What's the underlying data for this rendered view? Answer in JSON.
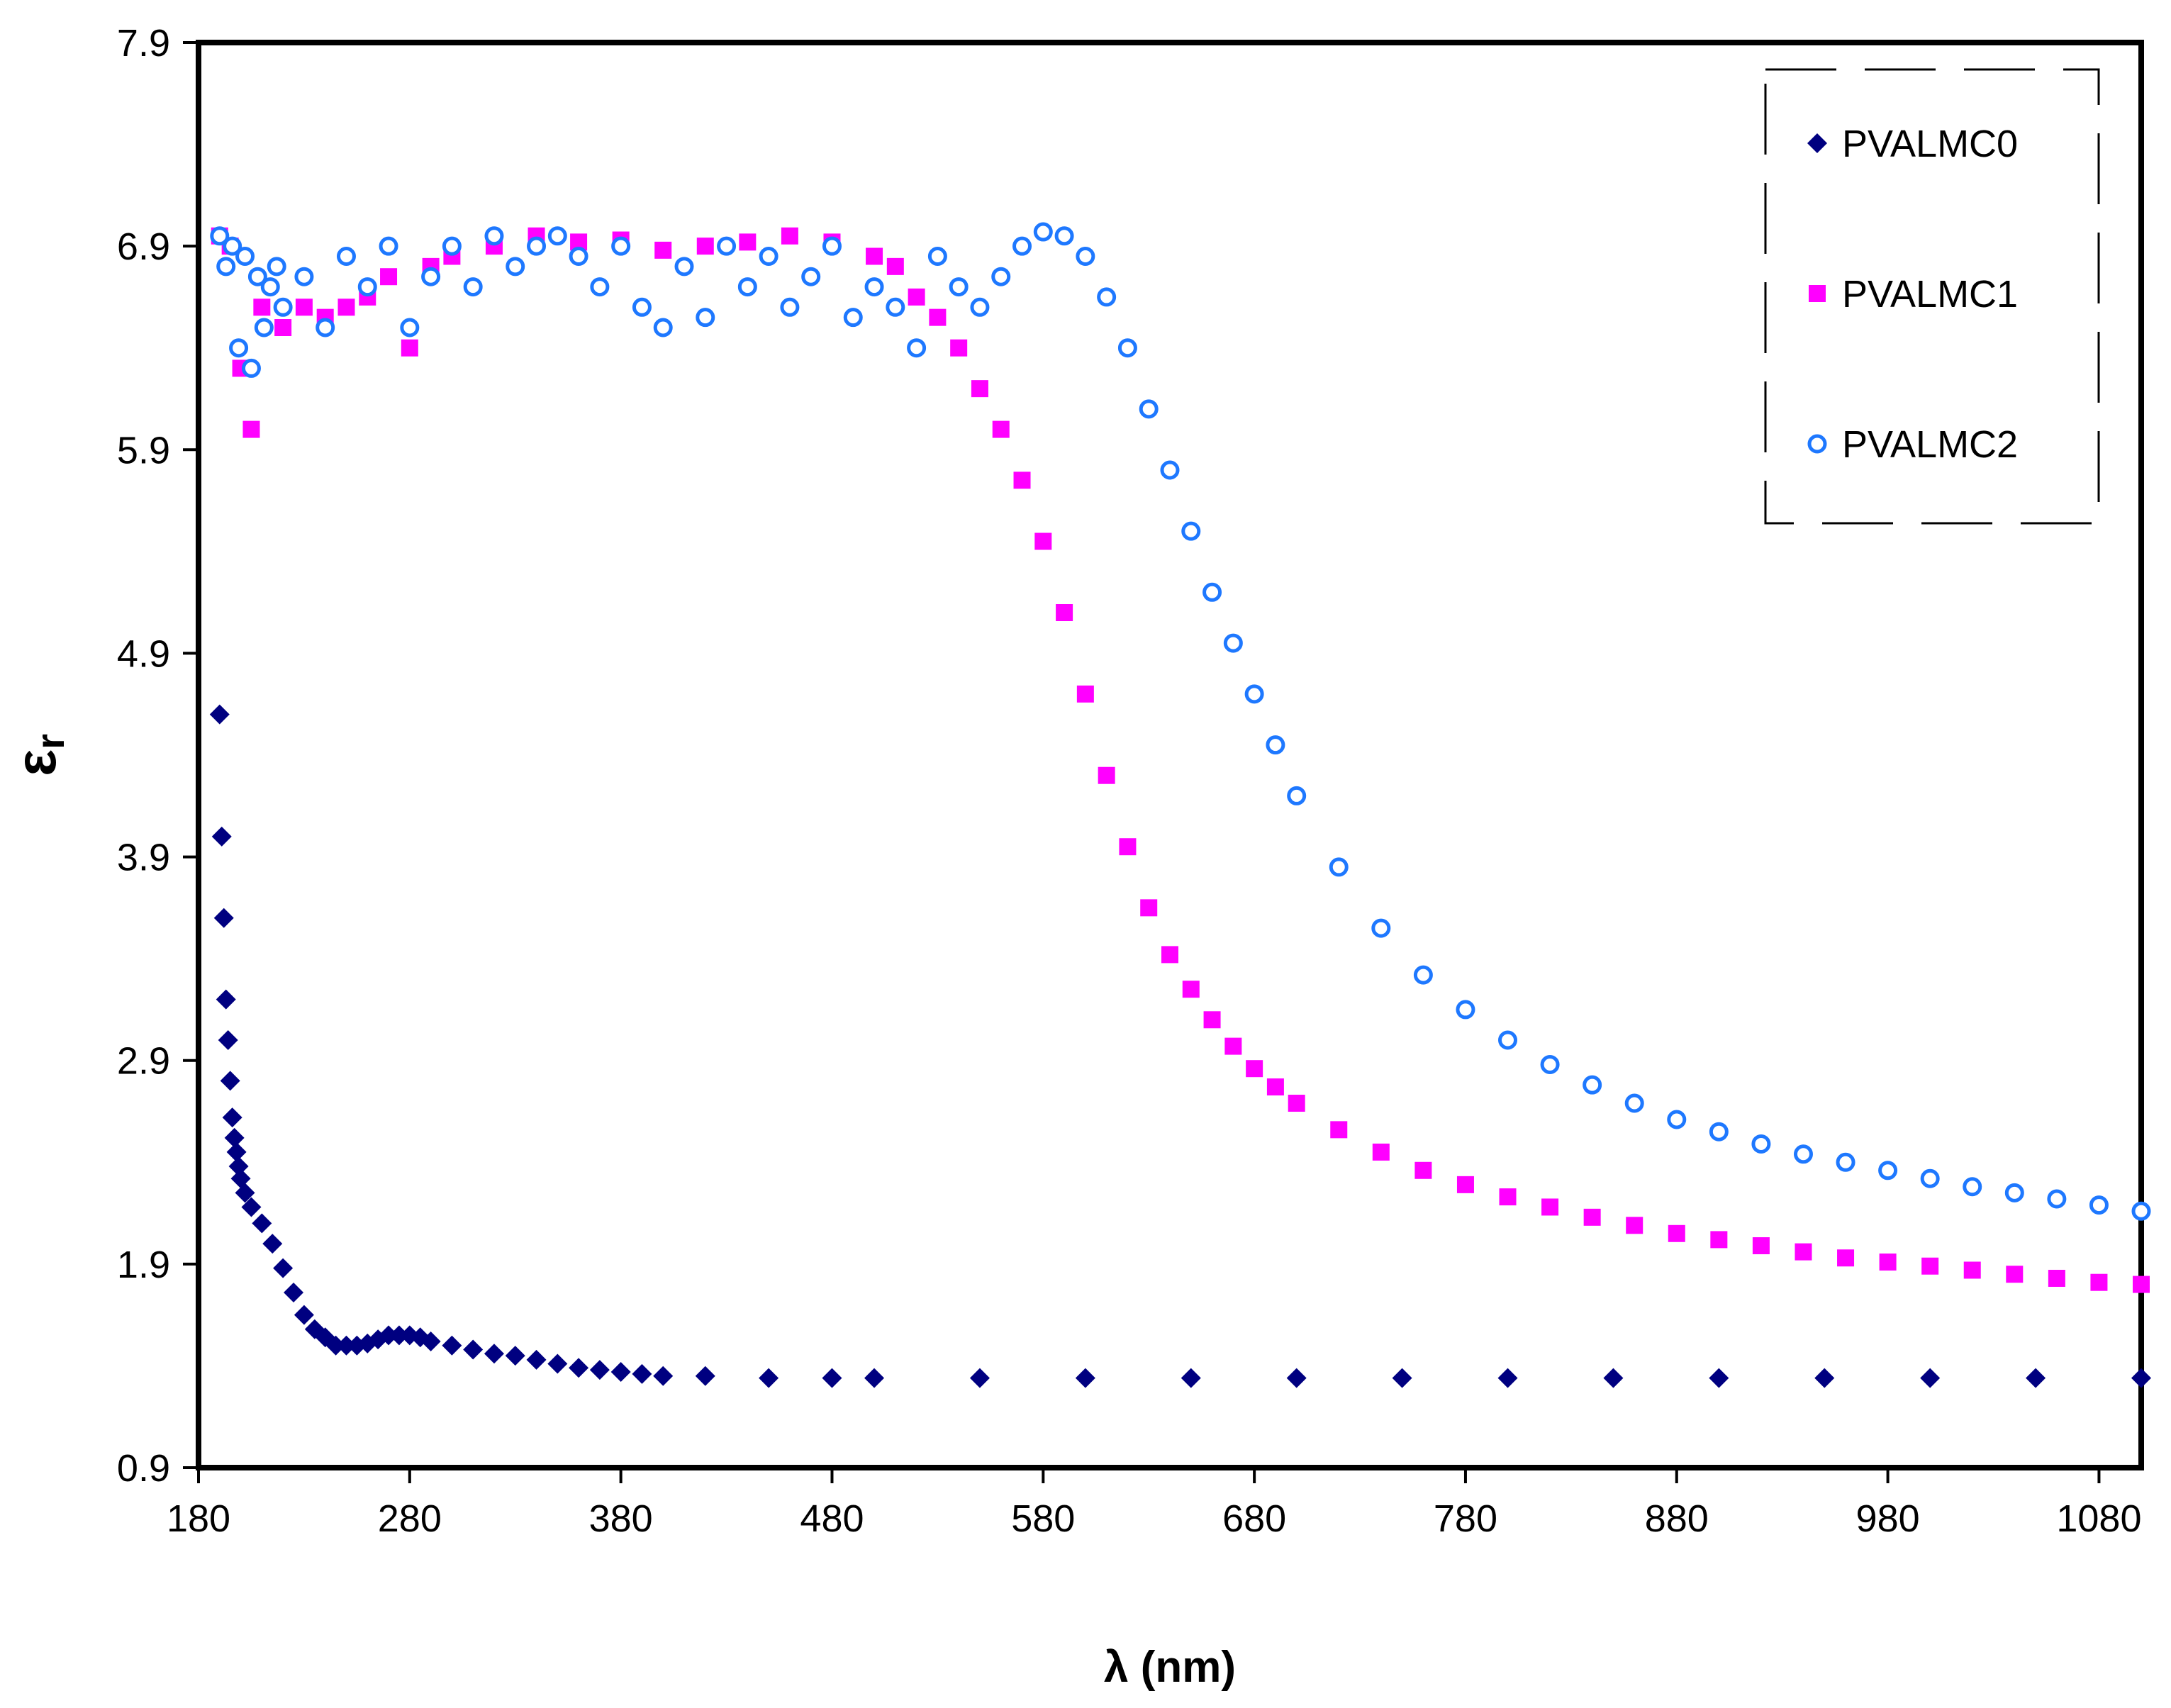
{
  "chart_data": {
    "type": "scatter",
    "title": "",
    "xlabel": "λ (nm)",
    "ylabel": "ε",
    "ylabel_subscript": "r",
    "xlim": [
      180,
      1100
    ],
    "ylim": [
      0.9,
      7.9
    ],
    "xticks": [
      180,
      280,
      380,
      480,
      580,
      680,
      780,
      880,
      980,
      1080
    ],
    "xtick_labels": [
      "180",
      "280",
      "380",
      "480",
      "580",
      "680",
      "780",
      "880",
      "980",
      "1080"
    ],
    "yticks": [
      0.9,
      1.9,
      2.9,
      3.9,
      4.9,
      5.9,
      6.9,
      7.9
    ],
    "ytick_labels": [
      "0.9",
      "1.9",
      "2.9",
      "3.9",
      "4.9",
      "5.9",
      "6.9",
      "7.9"
    ],
    "grid": false,
    "legend_position": "top-right",
    "series": [
      {
        "name": "PVALMC0",
        "marker": "diamond",
        "color": "#000080",
        "x": [
          190,
          191,
          192,
          193,
          194,
          195,
          196,
          197,
          198,
          199,
          200,
          202,
          205,
          210,
          215,
          220,
          225,
          230,
          235,
          240,
          245,
          250,
          255,
          260,
          265,
          270,
          275,
          280,
          285,
          290,
          300,
          310,
          320,
          330,
          340,
          350,
          360,
          370,
          380,
          390,
          400,
          420,
          450,
          480,
          500,
          550,
          600,
          650,
          700,
          750,
          800,
          850,
          900,
          950,
          1000,
          1050,
          1100
        ],
        "y": [
          4.6,
          4.0,
          3.6,
          3.2,
          3.0,
          2.8,
          2.62,
          2.52,
          2.45,
          2.38,
          2.32,
          2.25,
          2.18,
          2.1,
          2.0,
          1.88,
          1.76,
          1.65,
          1.58,
          1.54,
          1.5,
          1.5,
          1.5,
          1.51,
          1.53,
          1.55,
          1.55,
          1.55,
          1.54,
          1.52,
          1.5,
          1.48,
          1.46,
          1.45,
          1.43,
          1.41,
          1.39,
          1.38,
          1.37,
          1.36,
          1.35,
          1.35,
          1.34,
          1.34,
          1.34,
          1.34,
          1.34,
          1.34,
          1.34,
          1.34,
          1.34,
          1.34,
          1.34,
          1.34,
          1.34,
          1.34,
          1.34
        ]
      },
      {
        "name": "PVALMC1",
        "marker": "square",
        "color": "#ff00ff",
        "x": [
          190,
          195,
          200,
          205,
          210,
          220,
          230,
          240,
          250,
          260,
          270,
          280,
          290,
          300,
          320,
          340,
          360,
          380,
          400,
          420,
          440,
          460,
          480,
          500,
          510,
          520,
          530,
          540,
          550,
          560,
          570,
          580,
          590,
          600,
          610,
          620,
          630,
          640,
          650,
          660,
          670,
          680,
          690,
          700,
          720,
          740,
          760,
          780,
          800,
          820,
          840,
          860,
          880,
          900,
          920,
          940,
          960,
          980,
          1000,
          1020,
          1040,
          1060,
          1080,
          1100
        ],
        "y": [
          6.95,
          6.9,
          6.3,
          6.0,
          6.6,
          6.5,
          6.6,
          6.55,
          6.6,
          6.65,
          6.75,
          6.4,
          6.8,
          6.85,
          6.9,
          6.95,
          6.92,
          6.93,
          6.88,
          6.9,
          6.92,
          6.95,
          6.92,
          6.85,
          6.8,
          6.65,
          6.55,
          6.4,
          6.2,
          6.0,
          5.75,
          5.45,
          5.1,
          4.7,
          4.3,
          3.95,
          3.65,
          3.42,
          3.25,
          3.1,
          2.97,
          2.86,
          2.77,
          2.69,
          2.56,
          2.45,
          2.36,
          2.29,
          2.23,
          2.18,
          2.13,
          2.09,
          2.05,
          2.02,
          1.99,
          1.96,
          1.93,
          1.91,
          1.89,
          1.87,
          1.85,
          1.83,
          1.81,
          1.8
        ]
      },
      {
        "name": "PVALMC2",
        "marker": "circle",
        "color": "#1e78ff",
        "x": [
          190,
          193,
          196,
          199,
          202,
          205,
          208,
          211,
          214,
          217,
          220,
          230,
          240,
          250,
          260,
          270,
          280,
          290,
          300,
          310,
          320,
          330,
          340,
          350,
          360,
          370,
          380,
          390,
          400,
          410,
          420,
          430,
          440,
          450,
          460,
          470,
          480,
          490,
          500,
          510,
          520,
          530,
          540,
          550,
          560,
          570,
          580,
          590,
          600,
          610,
          620,
          630,
          640,
          650,
          660,
          670,
          680,
          690,
          700,
          720,
          740,
          760,
          780,
          800,
          820,
          840,
          860,
          880,
          900,
          920,
          940,
          960,
          980,
          1000,
          1020,
          1040,
          1060,
          1080,
          1100
        ],
        "y": [
          6.95,
          6.8,
          6.9,
          6.4,
          6.85,
          6.3,
          6.75,
          6.5,
          6.7,
          6.8,
          6.6,
          6.75,
          6.5,
          6.85,
          6.7,
          6.9,
          6.5,
          6.75,
          6.9,
          6.7,
          6.95,
          6.8,
          6.9,
          6.95,
          6.85,
          6.7,
          6.9,
          6.6,
          6.5,
          6.8,
          6.55,
          6.9,
          6.7,
          6.85,
          6.6,
          6.75,
          6.9,
          6.55,
          6.7,
          6.6,
          6.4,
          6.85,
          6.7,
          6.6,
          6.75,
          6.9,
          6.97,
          6.95,
          6.85,
          6.65,
          6.4,
          6.1,
          5.8,
          5.5,
          5.2,
          4.95,
          4.7,
          4.45,
          4.2,
          3.85,
          3.55,
          3.32,
          3.15,
          3.0,
          2.88,
          2.78,
          2.69,
          2.61,
          2.55,
          2.49,
          2.44,
          2.4,
          2.36,
          2.32,
          2.28,
          2.25,
          2.22,
          2.19,
          2.16
        ]
      }
    ]
  }
}
